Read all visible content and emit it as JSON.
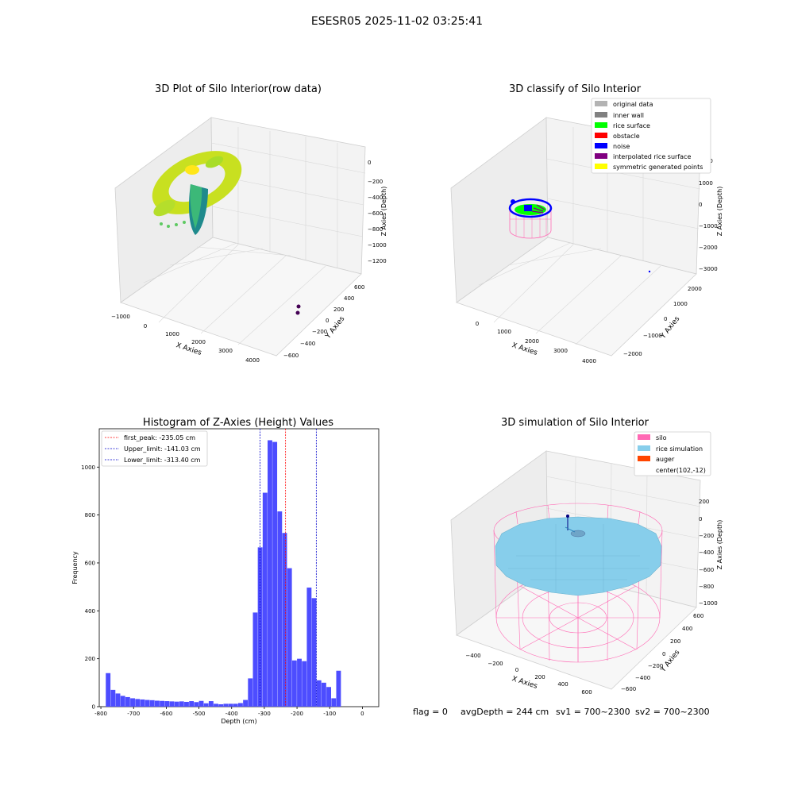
{
  "suptitle": "ESESR05 2025-11-02 03:25:41",
  "chart_data": [
    {
      "type": "scatter",
      "title": "3D Plot of Silo Interior(row data)",
      "xlabel": "X Axies",
      "ylabel": "Y Axies",
      "zlabel": "Z Axies (Depth)",
      "x_ticks": [
        "−1000",
        "0",
        "1000",
        "2000",
        "3000",
        "4000"
      ],
      "y_ticks": [
        "−600",
        "−400",
        "−200",
        "0",
        "200",
        "400",
        "600"
      ],
      "z_ticks": [
        "0",
        "−200",
        "−400",
        "−600",
        "−800",
        "−1000",
        "−1200"
      ],
      "grid": true,
      "outliers": [
        {
          "x": 4000,
          "y": 0,
          "z": -1000
        },
        {
          "x": 4000,
          "y": -150,
          "z": -1050
        }
      ]
    },
    {
      "type": "scatter",
      "title": "3D classify of Silo Interior",
      "xlabel": "X Axies",
      "ylabel": "Y Axies",
      "zlabel": "Z Axies (Depth)",
      "x_ticks": [
        "0",
        "1000",
        "2000",
        "3000",
        "4000"
      ],
      "y_ticks": [
        "−2000",
        "−1000",
        "0",
        "1000",
        "2000"
      ],
      "z_ticks": [
        "2000",
        "1000",
        "0",
        "−1000",
        "−2000",
        "−3000"
      ],
      "grid": true,
      "legend_position": "top-right",
      "legend": [
        {
          "label": "original data",
          "color": "#b3b3b3"
        },
        {
          "label": "inner wall",
          "color": "#808080"
        },
        {
          "label": "rice surface",
          "color": "#00ff00"
        },
        {
          "label": "obstacle",
          "color": "#ff0000"
        },
        {
          "label": "noise",
          "color": "#0000ff"
        },
        {
          "label": "interpolated rice surface",
          "color": "#800080"
        },
        {
          "label": "symmetric generated points",
          "color": "#ffff00"
        }
      ]
    },
    {
      "type": "bar",
      "title": "Histogram of Z-Axies (Height) Values",
      "xlabel": "Depth (cm)",
      "ylabel": "Frequency",
      "bin_width": 15,
      "bin_start": -785,
      "values": [
        140,
        70,
        55,
        45,
        40,
        35,
        32,
        30,
        28,
        27,
        25,
        24,
        23,
        22,
        21,
        22,
        20,
        23,
        19,
        24,
        14,
        23,
        12,
        10,
        12,
        12,
        12,
        15,
        28,
        118,
        393,
        665,
        893,
        1112,
        1105,
        815,
        725,
        578,
        193,
        200,
        190,
        497,
        453,
        110,
        100,
        82,
        35,
        150
      ],
      "bar_color": "#4d4dff",
      "xlim": [
        -805,
        50
      ],
      "ylim": [
        0,
        1160
      ],
      "x_ticks": [
        -800,
        -700,
        -600,
        -500,
        -400,
        -300,
        -200,
        -100,
        0
      ],
      "y_ticks": [
        0,
        200,
        400,
        600,
        800,
        1000
      ],
      "legend_position": "top-left",
      "vlines": [
        {
          "label": "first_peak: -235.05 cm",
          "x": -235.05,
          "color": "#ff0000"
        },
        {
          "label": "Upper_limit: -141.03 cm",
          "x": -141.03,
          "color": "#0000cc"
        },
        {
          "label": "Lower_limit: -313.40 cm",
          "x": -313.4,
          "color": "#0000cc"
        }
      ]
    },
    {
      "type": "scatter",
      "title": "3D simulation of Silo Interior",
      "xlabel": "X Axies",
      "ylabel": "Y Axies",
      "zlabel": "Z Axies (Depth)",
      "x_ticks": [
        "−400",
        "−200",
        "0",
        "200",
        "400",
        "600"
      ],
      "y_ticks": [
        "−600",
        "−400",
        "−200",
        "0",
        "200",
        "400",
        "600"
      ],
      "z_ticks": [
        "200",
        "0",
        "−200",
        "−400",
        "−600",
        "−800",
        "−1000"
      ],
      "grid": true,
      "legend_position": "top-right",
      "legend": [
        {
          "label": "silo",
          "color": "#ff69b4"
        },
        {
          "label": "rice simulation",
          "color": "#87ceeb"
        },
        {
          "label": "auger",
          "color": "#ff4500"
        },
        {
          "label": "center(102,-12)",
          "color": ""
        }
      ]
    }
  ],
  "status": {
    "flag": "flag = 0",
    "avg_depth": "avgDepth = 244 cm",
    "sv1": "sv1 = 700~2300",
    "sv2": "sv2 = 700~2300"
  }
}
